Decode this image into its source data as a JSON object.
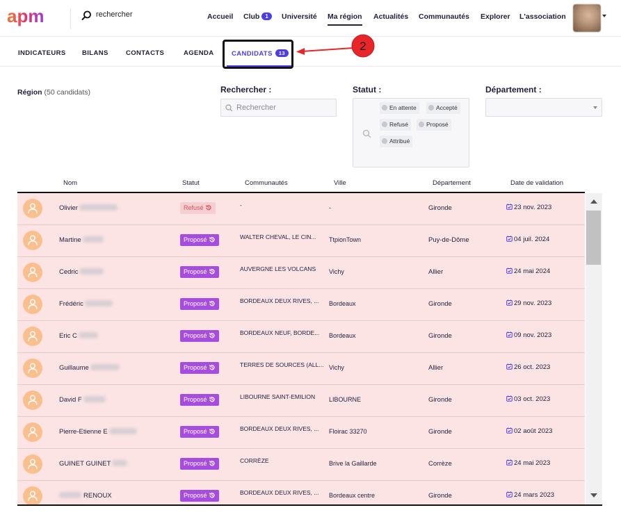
{
  "brand": {
    "logo_text": "apm"
  },
  "search": {
    "label": "rechercher"
  },
  "nav": {
    "items": [
      "Accueil",
      "Club",
      "Université",
      "Ma région",
      "Actualités",
      "Communautés",
      "Explorer",
      "L'association"
    ],
    "club_badge": "1",
    "active": "Ma région"
  },
  "subtabs": {
    "items": [
      "INDICATEURS",
      "BILANS",
      "CONTACTS",
      "AGENDA"
    ],
    "active_label": "CANDIDATS",
    "active_badge": "13"
  },
  "annotation": {
    "step": "2",
    "color": "#e8262a"
  },
  "filters": {
    "region_label": "Région",
    "region_count": "(50 candidats)",
    "search_label": "Rechercher :",
    "search_placeholder": "Rechercher",
    "statut_label": "Statut :",
    "statut_options": [
      "En attente",
      "Accepté",
      "Refusé",
      "Proposé",
      "Attribué"
    ],
    "departement_label": "Département :",
    "departement_value": ""
  },
  "table": {
    "headers": [
      "Nom",
      "Statut",
      "Communautés",
      "Ville",
      "Département",
      "Date de validation"
    ],
    "rows": [
      {
        "name": "Olivier",
        "status": "Refusé",
        "communautes": "-",
        "ville": "-",
        "departement": "Gironde",
        "date": "23 nov. 2023"
      },
      {
        "name": "Martine",
        "status": "Proposé",
        "communautes": "WALTER CHEVAL, LE CIN...",
        "ville": "TtpionTown",
        "departement": "Puy-de-Dôme",
        "date": "04 juil. 2024"
      },
      {
        "name": "Cedric",
        "status": "Proposé",
        "communautes": "AUVERGNE LES VOLCANS",
        "ville": "Vichy",
        "departement": "Allier",
        "date": "24 mai 2024"
      },
      {
        "name": "Frédéric",
        "status": "Proposé",
        "communautes": "BORDEAUX DEUX RIVES, ...",
        "ville": "Bordeaux",
        "departement": "Gironde",
        "date": "29 nov. 2023"
      },
      {
        "name": "Eric C",
        "status": "Proposé",
        "communautes": "BORDEAUX NEUF, BORDE...",
        "ville": "Bordeaux",
        "departement": "Gironde",
        "date": "09 nov. 2023"
      },
      {
        "name": "Guillaume",
        "status": "Proposé",
        "communautes": "TERRES DE SOURCES (ALL...",
        "ville": "Vichy",
        "departement": "Allier",
        "date": "26 oct. 2023"
      },
      {
        "name": "David F",
        "status": "Proposé",
        "communautes": "LIBOURNE SAINT-EMILION",
        "ville": "LIBOURNE",
        "departement": "Gironde",
        "date": "03 oct. 2023"
      },
      {
        "name": "Pierre-Etienne E",
        "status": "Proposé",
        "communautes": "BORDEAUX DEUX RIVES, ...",
        "ville": "Floirac 33270",
        "departement": "Gironde",
        "date": "02 août 2023"
      },
      {
        "name": "GUINET GUINET",
        "status": "Proposé",
        "communautes": "CORRÈZE",
        "ville": "Brive la Gaillarde",
        "departement": "Corrèze",
        "date": "24 mai 2023"
      },
      {
        "name": "RENOUX",
        "status": "Proposé",
        "communautes": "BORDEAUX DEUX RIVES, ...",
        "ville": "Bordeaux centre",
        "departement": "Gironde",
        "date": "24 mars 2023"
      }
    ]
  }
}
